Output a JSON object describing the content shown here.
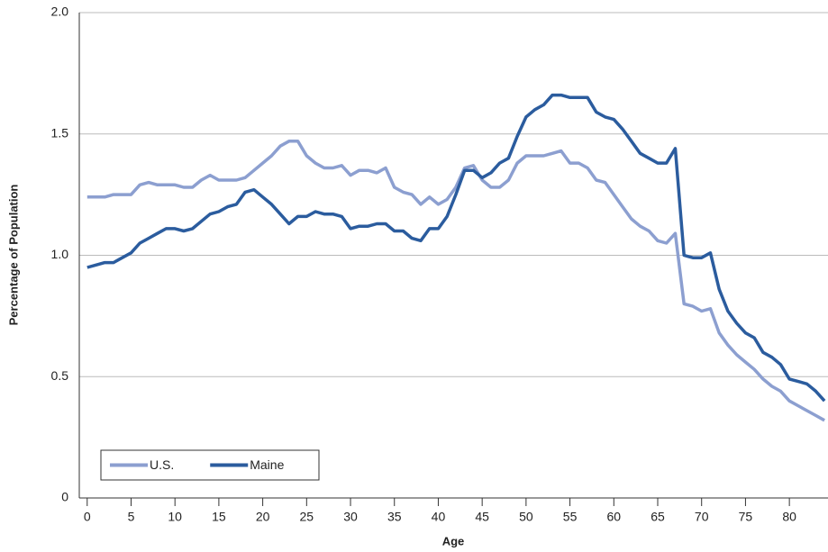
{
  "chart_data": {
    "type": "line",
    "x_label": "Age",
    "y_label": "Percentage of Population",
    "x": [
      0,
      1,
      2,
      3,
      4,
      5,
      6,
      7,
      8,
      9,
      10,
      11,
      12,
      13,
      14,
      15,
      16,
      17,
      18,
      19,
      20,
      21,
      22,
      23,
      24,
      25,
      26,
      27,
      28,
      29,
      30,
      31,
      32,
      33,
      34,
      35,
      36,
      37,
      38,
      39,
      40,
      41,
      42,
      43,
      44,
      45,
      46,
      47,
      48,
      49,
      50,
      51,
      52,
      53,
      54,
      55,
      56,
      57,
      58,
      59,
      60,
      61,
      62,
      63,
      64,
      65,
      66,
      67,
      68,
      69,
      70,
      71,
      72,
      73,
      74,
      75,
      76,
      77,
      78,
      79,
      80,
      81,
      82,
      83,
      84
    ],
    "series": [
      {
        "name": "U.S.",
        "color": "#8c9fd0",
        "values": [
          1.24,
          1.24,
          1.24,
          1.25,
          1.25,
          1.25,
          1.29,
          1.3,
          1.29,
          1.29,
          1.29,
          1.28,
          1.28,
          1.31,
          1.33,
          1.31,
          1.31,
          1.31,
          1.32,
          1.35,
          1.38,
          1.41,
          1.45,
          1.47,
          1.47,
          1.41,
          1.38,
          1.36,
          1.36,
          1.37,
          1.33,
          1.35,
          1.35,
          1.34,
          1.36,
          1.28,
          1.26,
          1.25,
          1.21,
          1.24,
          1.21,
          1.23,
          1.28,
          1.36,
          1.37,
          1.31,
          1.28,
          1.28,
          1.31,
          1.38,
          1.41,
          1.41,
          1.41,
          1.42,
          1.43,
          1.38,
          1.38,
          1.36,
          1.31,
          1.3,
          1.25,
          1.2,
          1.15,
          1.12,
          1.1,
          1.06,
          1.05,
          1.09,
          0.8,
          0.79,
          0.77,
          0.78,
          0.68,
          0.63,
          0.59,
          0.56,
          0.53,
          0.49,
          0.46,
          0.44,
          0.4,
          0.38,
          0.36,
          0.34,
          0.32
        ]
      },
      {
        "name": "Maine",
        "color": "#2b5c9e",
        "values": [
          0.95,
          0.96,
          0.97,
          0.97,
          0.99,
          1.01,
          1.05,
          1.07,
          1.09,
          1.11,
          1.11,
          1.1,
          1.11,
          1.14,
          1.17,
          1.18,
          1.2,
          1.21,
          1.26,
          1.27,
          1.24,
          1.21,
          1.17,
          1.13,
          1.16,
          1.16,
          1.18,
          1.17,
          1.17,
          1.16,
          1.11,
          1.12,
          1.12,
          1.13,
          1.13,
          1.1,
          1.1,
          1.07,
          1.06,
          1.11,
          1.11,
          1.16,
          1.25,
          1.35,
          1.35,
          1.32,
          1.34,
          1.38,
          1.4,
          1.49,
          1.57,
          1.6,
          1.62,
          1.66,
          1.66,
          1.65,
          1.65,
          1.65,
          1.59,
          1.57,
          1.56,
          1.52,
          1.47,
          1.42,
          1.4,
          1.38,
          1.38,
          1.44,
          1.0,
          0.99,
          0.99,
          1.01,
          0.86,
          0.77,
          0.72,
          0.68,
          0.66,
          0.6,
          0.58,
          0.55,
          0.49,
          0.48,
          0.47,
          0.44,
          0.4
        ]
      }
    ],
    "xlim": [
      -0.9,
      84.4
    ],
    "xticks": [
      0,
      5,
      10,
      15,
      20,
      25,
      30,
      35,
      40,
      45,
      50,
      55,
      60,
      65,
      70,
      75,
      80
    ],
    "ylim": [
      0,
      2
    ],
    "yticks": [
      {
        "value": 0,
        "label": "0"
      },
      {
        "value": 0.5,
        "label": "0.5"
      },
      {
        "value": 1,
        "label": "1.0"
      },
      {
        "value": 1.5,
        "label": "1.5"
      },
      {
        "value": 2,
        "label": "2.0"
      }
    ],
    "grid": true,
    "legend": "lower left"
  }
}
